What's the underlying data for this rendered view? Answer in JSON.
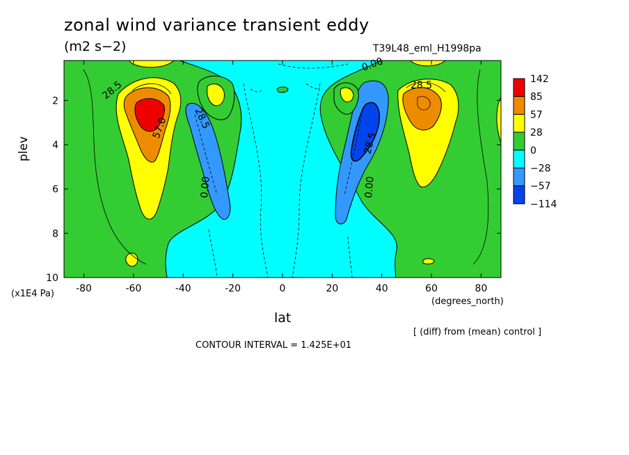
{
  "figure": {
    "title": "zonal wind variance transient eddy",
    "units": "(m2 s−2)",
    "run_name": "T39L48_eml_H1998pa",
    "note": "[ (diff) from (mean) control ]",
    "contour_interval": "CONTOUR INTERVAL = 1.425E+01"
  },
  "chart_data": {
    "type": "heatmap",
    "xlabel": "lat",
    "x_units": "(degrees_north)",
    "ylabel": "plev",
    "y_units": "(x1E4 Pa)",
    "xlim": [
      -88,
      88
    ],
    "ylim": [
      10,
      0.2
    ],
    "x_ticks": [
      "-80",
      "-60",
      "-40",
      "-20",
      "0",
      "20",
      "40",
      "60",
      "80"
    ],
    "x_tick_values": [
      -80,
      -60,
      -40,
      -20,
      0,
      20,
      40,
      60,
      80
    ],
    "y_ticks": [
      "2",
      "4",
      "6",
      "8",
      "10"
    ],
    "y_tick_values": [
      2,
      4,
      6,
      8,
      10
    ],
    "colorbar": {
      "labels": [
        "142",
        "85",
        "57",
        "28",
        "0",
        "−28",
        "−57",
        "−114"
      ],
      "colors": [
        "#ee0000",
        "#ee8c00",
        "#ffff00",
        "#33cc33",
        "#00ffff",
        "#3399ff",
        "#0044ee"
      ]
    },
    "contour_labels": [
      "28.5",
      "57.0",
      "28.5",
      "0.00",
      "0.00",
      "28.5",
      "0.00",
      "28.5"
    ],
    "features": [
      {
        "name": "SH jet maximum",
        "lat": -55,
        "plev": 2.5,
        "value": 142
      },
      {
        "name": "NH jet maximum",
        "lat": 55,
        "plev": 2.3,
        "value": 85
      },
      {
        "name": "SH subtropical minimum",
        "lat": -32,
        "plev": 4.5,
        "value": -57
      },
      {
        "name": "NH subtropical minimum",
        "lat": 32,
        "plev": 3.5,
        "value": -114
      }
    ]
  }
}
